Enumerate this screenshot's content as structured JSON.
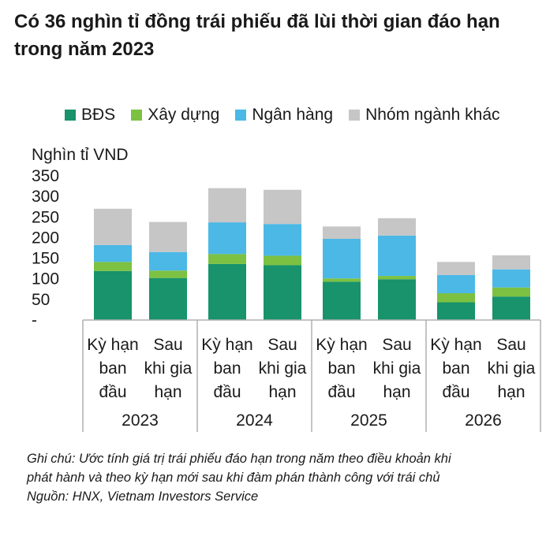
{
  "title": "Có 36 nghìn tỉ đồng trái phiếu đã lùi thời gian đáo hạn trong năm 2023",
  "colors": {
    "bds": "#18936b",
    "xay_dung": "#7cc142",
    "ngan_hang": "#4bb8e6",
    "khac": "#c6c6c6",
    "axis": "#b0b0b0"
  },
  "chart_data": {
    "type": "bar",
    "stacked": true,
    "title": "Có 36 nghìn tỉ đồng trái phiếu đã lùi thời gian đáo hạn trong năm 2023",
    "ylabel": "Nghìn tỉ VND",
    "ylim": [
      0,
      350
    ],
    "yticks": [
      "-",
      "50",
      "100",
      "150",
      "200",
      "250",
      "300",
      "350"
    ],
    "legend_position": "top",
    "groups": [
      "2023",
      "2024",
      "2025",
      "2026"
    ],
    "categories": [
      "Kỳ hạn ban đầu",
      "Sau khi gia hạn",
      "Kỳ hạn ban đầu",
      "Sau khi gia hạn",
      "Kỳ hạn ban đầu",
      "Sau khi gia hạn",
      "Kỳ hạn ban đầu",
      "Sau khi gia hạn"
    ],
    "category_lines": [
      [
        "Kỳ hạn",
        "ban",
        "đầu"
      ],
      [
        "Sau",
        "khi gia",
        "hạn"
      ]
    ],
    "series": [
      {
        "name": "BĐS",
        "color": "#18936b",
        "values": [
          119,
          102,
          136,
          133,
          93,
          99,
          43,
          57
        ]
      },
      {
        "name": "Xây dựng",
        "color": "#7cc142",
        "values": [
          22,
          18,
          24,
          23,
          8,
          8,
          22,
          22
        ]
      },
      {
        "name": "Ngân hàng",
        "color": "#4bb8e6",
        "values": [
          41,
          45,
          77,
          77,
          96,
          98,
          44,
          44
        ]
      },
      {
        "name": "Nhóm ngành khác",
        "color": "#c6c6c6",
        "values": [
          88,
          73,
          83,
          83,
          30,
          42,
          32,
          34
        ]
      }
    ]
  },
  "note": {
    "lines": [
      "Ghi chú: Ước tính giá trị trái phiếu đáo hạn trong năm theo điều khoản khi",
      "phát hành và theo kỳ hạn mới sau khi đàm phán thành công với trái chủ",
      "Nguồn: HNX, Vietnam Investors Service"
    ]
  }
}
